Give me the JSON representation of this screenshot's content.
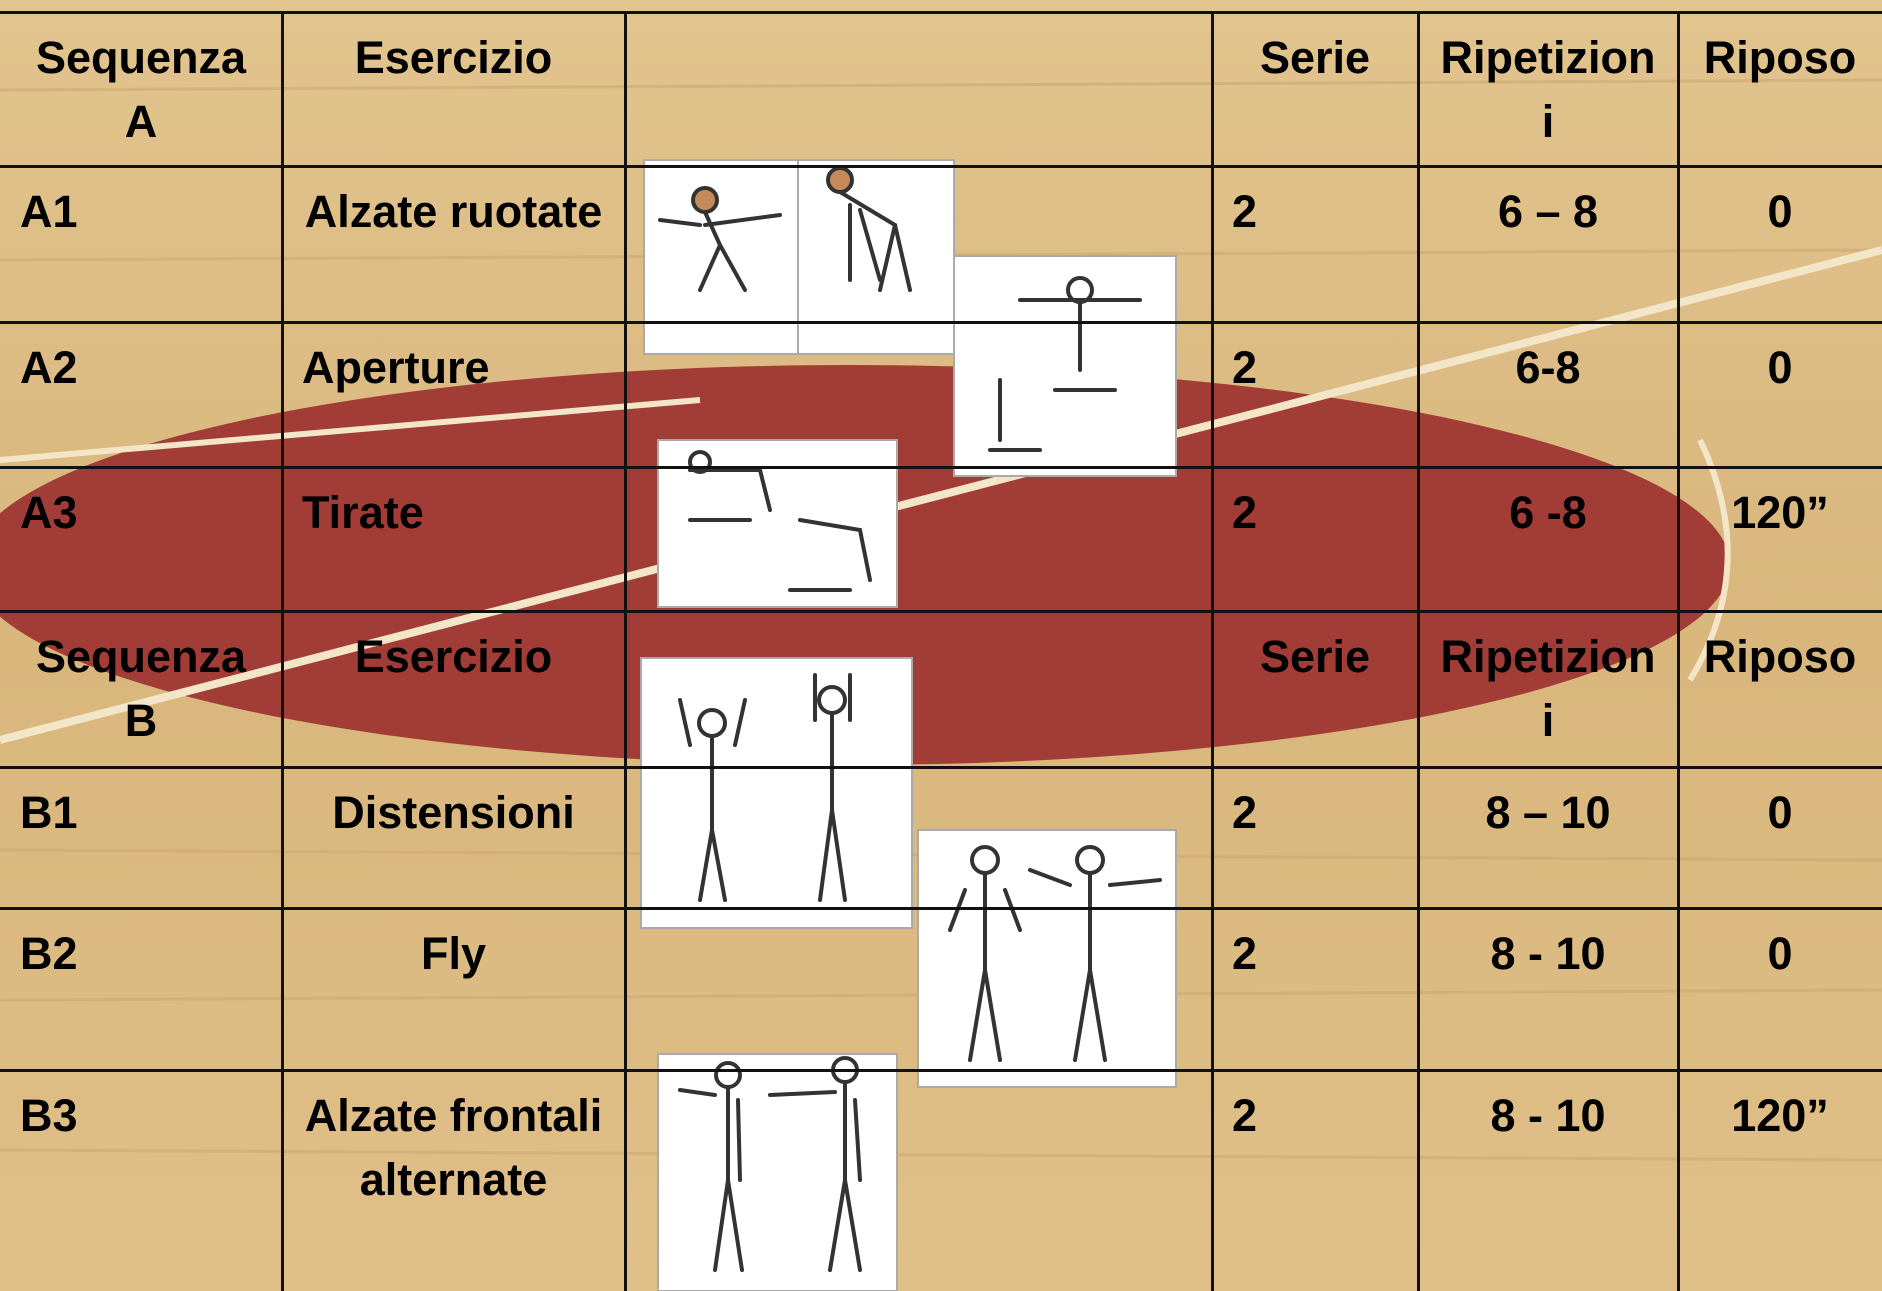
{
  "table": {
    "sections": [
      {
        "header": [
          "Sequenza A",
          "Esercizio",
          "Serie",
          "Ripetizioni",
          "Riposo"
        ],
        "rows": [
          [
            "A1",
            "Alzate ruotate",
            "2",
            "6 – 8",
            "0"
          ],
          [
            "A2",
            "Aperture",
            "2",
            "6-8",
            "0"
          ],
          [
            "A3",
            "Tirate",
            "2",
            "6 -8",
            "120”"
          ]
        ]
      },
      {
        "header": [
          "Sequenza B",
          "Esercizio",
          "Serie",
          "Ripetizioni",
          "Riposo"
        ],
        "rows": [
          [
            "B1",
            "Distensioni",
            "2",
            "8 – 10",
            "0"
          ],
          [
            "B2",
            "Fly",
            "2",
            "8 - 10",
            "0"
          ],
          [
            "B3",
            "Alzate frontali alternate",
            "2",
            "8 - 10",
            "120”"
          ]
        ]
      }
    ]
  }
}
